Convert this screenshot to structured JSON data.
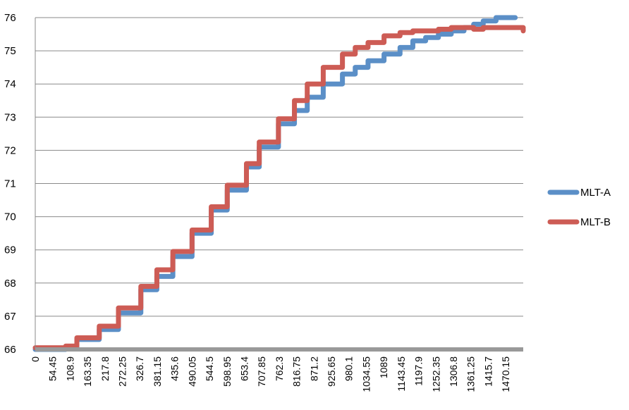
{
  "chart_data": {
    "type": "line",
    "title": "",
    "xlabel": "",
    "ylabel": "",
    "ylim": [
      66,
      76
    ],
    "yticks": [
      "66",
      "67",
      "68",
      "69",
      "70",
      "71",
      "72",
      "73",
      "74",
      "75",
      "76"
    ],
    "xlim": [
      0,
      1525
    ],
    "xticks": [
      "0",
      "54.45",
      "108.9",
      "163.35",
      "217.8",
      "272.25",
      "326.7",
      "381.15",
      "435.6",
      "490.05",
      "544.5",
      "598.95",
      "653.4",
      "707.85",
      "762.3",
      "816.75",
      "871.2",
      "925.65",
      "980.1",
      "1034.55",
      "1089",
      "1143.45",
      "1197.9",
      "1252.35",
      "1306.8",
      "1361.25",
      "1415.7",
      "1470.15"
    ],
    "grid": true,
    "legend_position": "right",
    "series": [
      {
        "name": "MLT-A",
        "color": "#5b8fc7",
        "x": [
          0,
          95,
          130,
          200,
          260,
          330,
          380,
          430,
          490,
          550,
          600,
          660,
          700,
          760,
          810,
          850,
          900,
          960,
          1000,
          1040,
          1090,
          1140,
          1180,
          1220,
          1260,
          1300,
          1340,
          1370,
          1400,
          1440,
          1470,
          1500
        ],
        "y": [
          66.0,
          66.05,
          66.3,
          66.6,
          67.1,
          67.8,
          68.2,
          68.8,
          69.5,
          70.2,
          70.8,
          71.5,
          72.1,
          72.8,
          73.2,
          73.6,
          74.0,
          74.3,
          74.5,
          74.7,
          74.9,
          75.1,
          75.3,
          75.4,
          75.5,
          75.6,
          75.7,
          75.8,
          75.9,
          76.0,
          76.0,
          76.0
        ]
      },
      {
        "name": "MLT-B",
        "color": "#cd5c55",
        "x": [
          0,
          95,
          130,
          200,
          260,
          330,
          380,
          430,
          490,
          550,
          600,
          660,
          700,
          760,
          810,
          850,
          900,
          960,
          1000,
          1040,
          1090,
          1140,
          1180,
          1220,
          1260,
          1300,
          1340,
          1370,
          1400,
          1440,
          1470,
          1525
        ],
        "y": [
          66.05,
          66.1,
          66.35,
          66.7,
          67.25,
          67.9,
          68.4,
          68.95,
          69.6,
          70.3,
          70.95,
          71.6,
          72.25,
          72.95,
          73.5,
          74.0,
          74.5,
          74.9,
          75.1,
          75.25,
          75.45,
          75.55,
          75.6,
          75.6,
          75.65,
          75.7,
          75.7,
          75.65,
          75.7,
          75.7,
          75.7,
          75.6
        ]
      }
    ]
  }
}
